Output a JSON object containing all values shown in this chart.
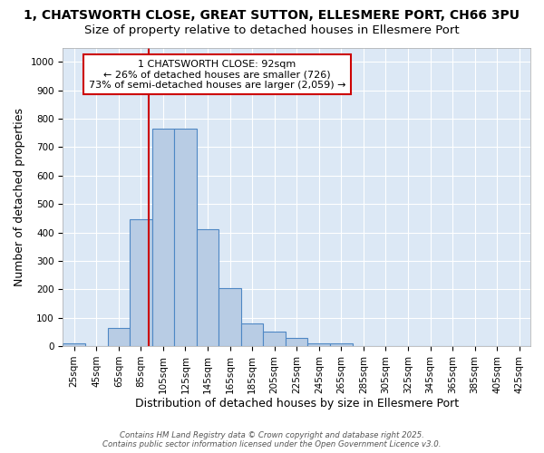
{
  "title_line1": "1, CHATSWORTH CLOSE, GREAT SUTTON, ELLESMERE PORT, CH66 3PU",
  "title_line2": "Size of property relative to detached houses in Ellesmere Port",
  "xlabel": "Distribution of detached houses by size in Ellesmere Port",
  "ylabel": "Number of detached properties",
  "bin_centers": [
    25,
    45,
    65,
    85,
    105,
    125,
    145,
    165,
    185,
    205,
    225,
    245,
    265,
    285,
    305,
    325,
    345,
    365,
    385,
    405,
    425
  ],
  "values": [
    10,
    0,
    65,
    445,
    765,
    765,
    410,
    205,
    80,
    50,
    30,
    10,
    10,
    0,
    0,
    0,
    0,
    0,
    0,
    0,
    0
  ],
  "bin_width": 20,
  "bar_color": "#b8cce4",
  "bar_edgecolor": "#4e87c4",
  "bar_linewidth": 0.8,
  "property_size": 92,
  "vline_color": "#cc0000",
  "vline_linewidth": 1.5,
  "annotation_line1": "1 CHATSWORTH CLOSE: 92sqm",
  "annotation_line2": "← 26% of detached houses are smaller (726)",
  "annotation_line3": "73% of semi-detached houses are larger (2,059) →",
  "annotation_box_color": "#ffffff",
  "annotation_box_edgecolor": "#cc0000",
  "ylim": [
    0,
    1050
  ],
  "xlim": [
    15,
    435
  ],
  "yticks": [
    0,
    100,
    200,
    300,
    400,
    500,
    600,
    700,
    800,
    900,
    1000
  ],
  "figure_background": "#ffffff",
  "plot_background": "#dce8f5",
  "grid_color": "#ffffff",
  "title_fontsize": 10,
  "subtitle_fontsize": 9.5,
  "tick_fontsize": 7.5,
  "label_fontsize": 9,
  "annotation_fontsize": 8,
  "footer_line1": "Contains HM Land Registry data © Crown copyright and database right 2025.",
  "footer_line2": "Contains public sector information licensed under the Open Government Licence v3.0."
}
